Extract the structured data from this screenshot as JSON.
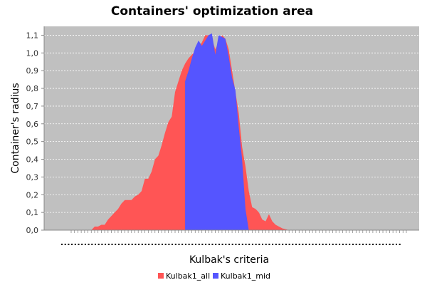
{
  "chart_data": {
    "type": "area",
    "title": "Containers' optimization area",
    "xlabel": "Kulbak's criteria",
    "ylabel": "Container's radius",
    "ylim": [
      0,
      1.15
    ],
    "y_ticks": [
      "0,0",
      "0,1",
      "0,2",
      "0,3",
      "0,4",
      "0,5",
      "0,6",
      "0,7",
      "0,8",
      "0,9",
      "1,0",
      "1,1"
    ],
    "grid": true,
    "legend_position": "bottom",
    "x_ticks_labeled": false,
    "x": [
      0,
      1,
      2,
      3,
      4,
      5,
      6,
      7,
      8,
      9,
      10,
      11,
      12,
      13,
      14,
      15,
      16,
      17,
      18,
      19,
      20,
      21,
      22,
      23,
      24,
      25,
      26,
      27,
      28,
      29,
      30,
      31,
      32,
      33,
      34,
      35,
      36,
      37,
      38,
      39,
      40,
      41,
      42,
      43,
      44,
      45,
      46,
      47,
      48,
      49,
      50,
      51,
      52,
      53,
      54,
      55,
      56,
      57,
      58,
      59,
      60,
      61,
      62,
      63,
      64,
      65,
      66,
      67,
      68,
      69,
      70,
      71,
      72,
      73,
      74,
      75,
      76,
      77,
      78,
      79,
      80,
      81,
      82,
      83,
      84,
      85,
      86,
      87,
      88,
      89,
      90,
      91,
      92,
      93,
      94,
      95,
      96,
      97,
      98,
      99,
      100
    ],
    "series": [
      {
        "name": "Kulbak1_all",
        "color": "#ff5555",
        "values": [
          0,
          0,
          0,
          0,
          0,
          0,
          0,
          0.02,
          0.02,
          0.03,
          0.03,
          0.06,
          0.08,
          0.1,
          0.12,
          0.15,
          0.17,
          0.17,
          0.17,
          0.19,
          0.2,
          0.22,
          0.29,
          0.29,
          0.33,
          0.4,
          0.42,
          0.48,
          0.55,
          0.61,
          0.64,
          0.78,
          0.84,
          0.9,
          0.94,
          0.97,
          0.99,
          1.01,
          1.03,
          1.06,
          1.1,
          1.1,
          1.08,
          1.02,
          1.06,
          1.1,
          1.08,
          1.02,
          0.9,
          0.78,
          0.66,
          0.47,
          0.36,
          0.22,
          0.13,
          0.12,
          0.1,
          0.06,
          0.05,
          0.09,
          0.05,
          0.03,
          0.02,
          0.01,
          0.005,
          0,
          0,
          0,
          0,
          0,
          0,
          0,
          0,
          0,
          0,
          0,
          0,
          0,
          0,
          0,
          0,
          0,
          0,
          0,
          0,
          0,
          0,
          0,
          0,
          0,
          0,
          0,
          0,
          0,
          0,
          0,
          0,
          0,
          0,
          0,
          0
        ]
      },
      {
        "name": "Kulbak1_mid",
        "color": "#5555ff",
        "values": [
          null,
          null,
          null,
          null,
          null,
          null,
          null,
          null,
          null,
          null,
          null,
          null,
          null,
          null,
          null,
          null,
          null,
          null,
          null,
          null,
          null,
          null,
          null,
          null,
          null,
          null,
          null,
          null,
          null,
          null,
          null,
          null,
          null,
          null,
          0.84,
          0.9,
          0.97,
          1.03,
          1.07,
          1.04,
          1.07,
          1.1,
          1.11,
          0.99,
          1.1,
          1.09,
          1.08,
          0.98,
          0.86,
          0.79,
          0.58,
          0.4,
          0.12,
          0.0,
          null,
          null,
          null,
          null,
          null,
          null,
          null,
          null,
          null,
          null,
          null,
          null,
          null,
          null,
          null,
          null,
          null,
          null,
          null,
          null,
          null,
          null,
          null,
          null,
          null,
          null,
          null,
          null,
          null,
          null,
          null,
          null,
          null,
          null,
          null,
          null,
          null,
          null,
          null,
          null,
          null,
          null,
          null,
          null,
          null,
          null,
          null
        ]
      }
    ]
  }
}
